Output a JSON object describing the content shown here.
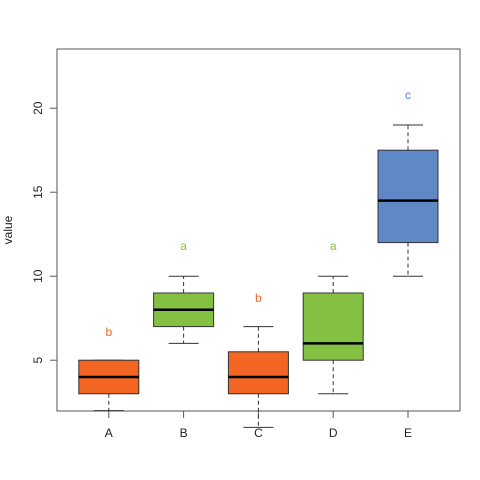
{
  "chart_data": {
    "type": "box",
    "title": "",
    "xlabel": "",
    "ylabel": "value",
    "ylim": [
      0,
      22
    ],
    "yticks": [
      5,
      10,
      15,
      20
    ],
    "grid": false,
    "legend": "none",
    "categories": [
      "A",
      "B",
      "C",
      "D",
      "E"
    ],
    "boxes": [
      {
        "category": "A",
        "whisker_low": 2,
        "q1": 3,
        "median": 4,
        "q3": 5,
        "whisker_high": 5,
        "letter": "b",
        "letter_y": 6.7,
        "fill": "#f26522",
        "letter_color": "#f26522"
      },
      {
        "category": "B",
        "whisker_low": 6,
        "q1": 7,
        "median": 8,
        "q3": 9,
        "whisker_high": 10,
        "letter": "a",
        "letter_y": 11.8,
        "fill": "#84c142",
        "letter_color": "#84c142"
      },
      {
        "category": "C",
        "whisker_low": 1,
        "q1": 3,
        "median": 4,
        "q3": 5.5,
        "whisker_high": 7,
        "letter": "b",
        "letter_y": 8.7,
        "fill": "#f26522",
        "letter_color": "#f26522"
      },
      {
        "category": "D",
        "whisker_low": 3,
        "q1": 5,
        "median": 6,
        "q3": 9,
        "whisker_high": 10,
        "letter": "a",
        "letter_y": 11.8,
        "fill": "#84c142",
        "letter_color": "#84c142"
      },
      {
        "category": "E",
        "whisker_low": 10,
        "q1": 12,
        "median": 14.5,
        "q3": 17.5,
        "whisker_high": 19,
        "letter": "c",
        "letter_y": 20.8,
        "fill": "#6088c6",
        "letter_color": "#4a7fd0"
      }
    ]
  }
}
